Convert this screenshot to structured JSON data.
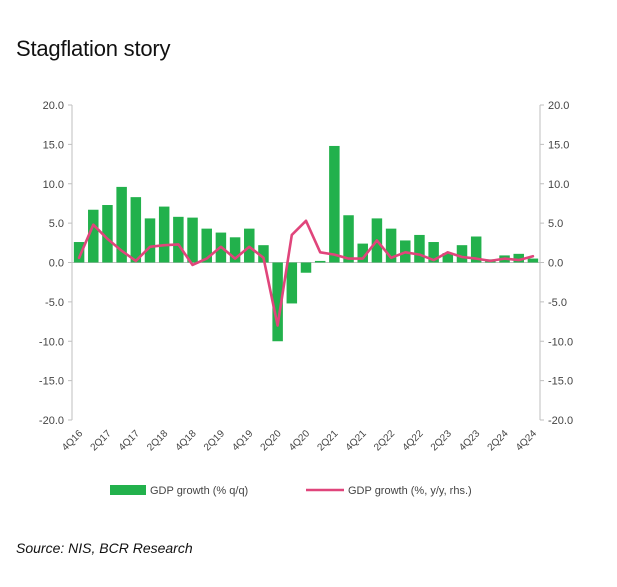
{
  "title": "Stagflation story",
  "source": "Source: NIS, BCR Research",
  "colors": {
    "bar": "#22b14c",
    "line": "#e0457b",
    "axis": "#bfbfbf"
  },
  "chart_data": {
    "type": "bar",
    "y_ticks": [
      "20.0",
      "15.0",
      "10.0",
      "5.0",
      "0.0",
      "-5.0",
      "-10.0",
      "-15.0",
      "-20.0"
    ],
    "y2_ticks": [
      "20.0",
      "15.0",
      "10.0",
      "5.0",
      "0.0",
      "-5.0",
      "-10.0",
      "-15.0",
      "-20.0"
    ],
    "ylim": [
      -20,
      20
    ],
    "y2lim": [
      -20,
      20
    ],
    "x_tick_labels": [
      "4Q16",
      "2Q17",
      "4Q17",
      "2Q18",
      "4Q18",
      "2Q19",
      "4Q19",
      "2Q20",
      "4Q20",
      "2Q21",
      "4Q21",
      "2Q22",
      "4Q22",
      "2Q23",
      "4Q23",
      "2Q24",
      "4Q24"
    ],
    "categories": [
      "4Q16",
      "1Q17",
      "2Q17",
      "3Q17",
      "4Q17",
      "1Q18",
      "2Q18",
      "3Q18",
      "4Q18",
      "1Q19",
      "2Q19",
      "3Q19",
      "4Q19",
      "1Q20",
      "2Q20",
      "3Q20",
      "4Q20",
      "1Q21",
      "2Q21",
      "3Q21",
      "4Q21",
      "1Q22",
      "2Q22",
      "3Q22",
      "4Q22",
      "1Q23",
      "2Q23",
      "3Q23",
      "4Q23",
      "1Q24",
      "2Q24",
      "3Q24",
      "4Q24"
    ],
    "series": [
      {
        "name": "GDP growth (% q/q)",
        "type": "bar",
        "axis": "left",
        "values": [
          2.6,
          6.7,
          7.3,
          9.6,
          8.3,
          5.6,
          7.1,
          5.8,
          5.7,
          4.3,
          3.8,
          3.2,
          4.3,
          2.2,
          -10.0,
          -5.2,
          -1.3,
          0.2,
          14.8,
          6.0,
          2.4,
          5.6,
          4.3,
          2.8,
          3.5,
          2.6,
          1.2,
          2.2,
          3.3,
          0.4,
          0.9,
          1.1,
          0.5
        ]
      },
      {
        "name": "GDP growth (%, y/y, rhs.)",
        "type": "line",
        "axis": "right",
        "values": [
          0.6,
          4.8,
          3.0,
          1.5,
          0.2,
          2.0,
          2.2,
          2.3,
          -0.3,
          0.5,
          2.0,
          0.5,
          2.0,
          0.6,
          -8.0,
          3.5,
          5.3,
          1.3,
          1.0,
          0.5,
          0.5,
          2.8,
          0.6,
          1.3,
          1.0,
          0.3,
          1.3,
          0.7,
          0.5,
          0.2,
          0.5,
          0.3,
          0.8
        ]
      }
    ]
  }
}
